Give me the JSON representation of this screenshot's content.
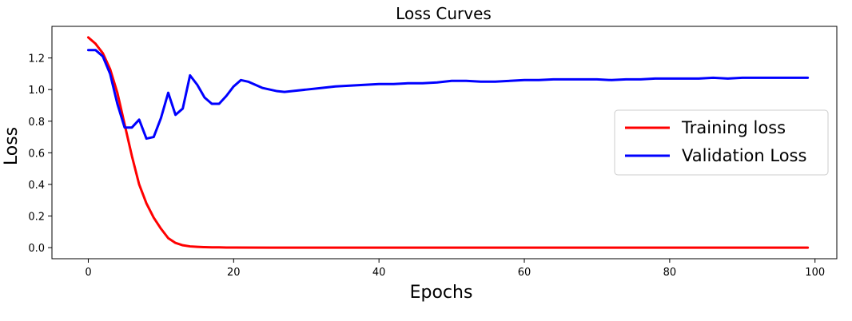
{
  "chart_data": {
    "type": "line",
    "title": "Loss Curves",
    "xlabel": "Epochs",
    "ylabel": "Loss",
    "xlim": [
      -5,
      103
    ],
    "ylim": [
      -0.07,
      1.4
    ],
    "xticks": [
      0,
      20,
      40,
      60,
      80,
      100
    ],
    "yticks": [
      0.0,
      0.2,
      0.4,
      0.6,
      0.8,
      1.0,
      1.2
    ],
    "ytick_labels": [
      "0.0",
      "0.2",
      "0.4",
      "0.6",
      "0.8",
      "1.0",
      "1.2"
    ],
    "grid": false,
    "legend_position": "center-right",
    "series": [
      {
        "name": "Training loss",
        "color": "#ff0000",
        "x": [
          0,
          1,
          2,
          3,
          4,
          5,
          6,
          7,
          8,
          9,
          10,
          11,
          12,
          13,
          14,
          15,
          16,
          17,
          18,
          19,
          20,
          25,
          30,
          40,
          50,
          60,
          70,
          80,
          90,
          99
        ],
        "y": [
          1.33,
          1.29,
          1.23,
          1.13,
          0.98,
          0.78,
          0.58,
          0.4,
          0.28,
          0.19,
          0.12,
          0.06,
          0.03,
          0.015,
          0.008,
          0.005,
          0.003,
          0.002,
          0.002,
          0.001,
          0.001,
          0.0,
          0.0,
          0.0,
          0.0,
          0.0,
          0.0,
          0.0,
          0.0,
          0.0
        ]
      },
      {
        "name": "Validation Loss",
        "color": "#0000ff",
        "x": [
          0,
          1,
          2,
          3,
          4,
          5,
          6,
          7,
          8,
          9,
          10,
          11,
          12,
          13,
          14,
          15,
          16,
          17,
          18,
          19,
          20,
          21,
          22,
          23,
          24,
          25,
          26,
          27,
          28,
          30,
          32,
          34,
          36,
          38,
          40,
          42,
          44,
          46,
          48,
          50,
          52,
          54,
          56,
          58,
          60,
          62,
          64,
          66,
          68,
          70,
          72,
          74,
          76,
          78,
          80,
          82,
          84,
          86,
          88,
          90,
          92,
          94,
          96,
          98,
          99
        ],
        "y": [
          1.25,
          1.25,
          1.21,
          1.1,
          0.91,
          0.76,
          0.76,
          0.81,
          0.69,
          0.7,
          0.82,
          0.98,
          0.84,
          0.88,
          1.09,
          1.03,
          0.95,
          0.91,
          0.91,
          0.96,
          1.02,
          1.06,
          1.05,
          1.03,
          1.01,
          1.0,
          0.99,
          0.985,
          0.99,
          1.0,
          1.01,
          1.02,
          1.025,
          1.03,
          1.035,
          1.035,
          1.04,
          1.04,
          1.045,
          1.055,
          1.055,
          1.05,
          1.05,
          1.055,
          1.06,
          1.06,
          1.065,
          1.065,
          1.065,
          1.065,
          1.06,
          1.065,
          1.065,
          1.07,
          1.07,
          1.07,
          1.07,
          1.075,
          1.07,
          1.075,
          1.075,
          1.075,
          1.075,
          1.075,
          1.075
        ]
      }
    ]
  }
}
